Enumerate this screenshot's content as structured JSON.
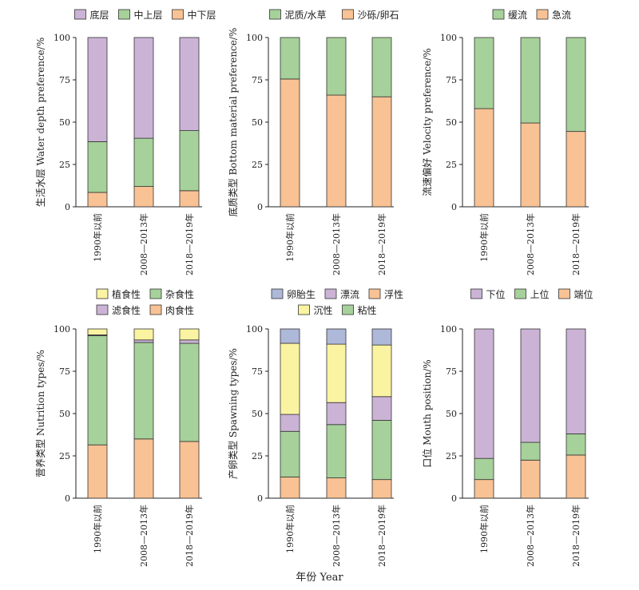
{
  "x_axis_title": "年份 Year",
  "colors": {
    "purple": "#CBB3D6",
    "green": "#A6D19A",
    "orange": "#F8C294",
    "yellow": "#FAF3A2",
    "blue": "#AEB8D8"
  },
  "chart_data": [
    {
      "type": "bar",
      "stacked": true,
      "categories": [
        "1990年以前",
        "2008—2013年",
        "2018—2019年"
      ],
      "ylabel": "生活水层 Water depth preference/%",
      "ylim": [
        0,
        100
      ],
      "yticks": [
        0,
        25,
        50,
        75,
        100
      ],
      "legend_rows": [
        [
          "底层",
          "中上层",
          "中下层"
        ]
      ],
      "series": [
        {
          "name": "中下层",
          "color": "orange",
          "values": [
            8.5,
            12,
            9.5
          ]
        },
        {
          "name": "中上层",
          "color": "green",
          "values": [
            30,
            28.5,
            35.5
          ]
        },
        {
          "name": "底层",
          "color": "purple",
          "values": [
            61.5,
            59.5,
            55
          ]
        }
      ]
    },
    {
      "type": "bar",
      "stacked": true,
      "categories": [
        "1990年以前",
        "2008—2013年",
        "2018—2019年"
      ],
      "ylabel": "底质类型 Bottom material preference/%",
      "ylim": [
        0,
        100
      ],
      "yticks": [
        0,
        25,
        50,
        75,
        100
      ],
      "legend_rows": [
        [
          "泥质/水草",
          "沙砾/卵石"
        ]
      ],
      "series": [
        {
          "name": "沙砾/卵石",
          "color": "orange",
          "values": [
            75.5,
            66,
            65
          ]
        },
        {
          "name": "泥质/水草",
          "color": "green",
          "values": [
            24.5,
            34,
            35
          ]
        }
      ]
    },
    {
      "type": "bar",
      "stacked": true,
      "categories": [
        "1990年以前",
        "2008—2013年",
        "2018—2019年"
      ],
      "ylabel": "流速偏好 Velocity preference/%",
      "ylim": [
        0,
        100
      ],
      "yticks": [
        0,
        25,
        50,
        75,
        100
      ],
      "legend_rows": [
        [
          "缓流",
          "急流"
        ]
      ],
      "series": [
        {
          "name": "急流",
          "color": "orange",
          "values": [
            58,
            49.5,
            44.5
          ]
        },
        {
          "name": "缓流",
          "color": "green",
          "values": [
            42,
            50.5,
            55.5
          ]
        }
      ]
    },
    {
      "type": "bar",
      "stacked": true,
      "categories": [
        "1990年以前",
        "2008—2013年",
        "2018—2019年"
      ],
      "ylabel": "营养类型 Nutrition types/%",
      "ylim": [
        0,
        100
      ],
      "yticks": [
        0,
        25,
        50,
        75,
        100
      ],
      "legend_rows": [
        [
          "植食性",
          "杂食性"
        ],
        [
          "滤食性",
          "肉食性"
        ]
      ],
      "series": [
        {
          "name": "肉食性",
          "color": "orange",
          "values": [
            31.5,
            35,
            33.5
          ]
        },
        {
          "name": "杂食性",
          "color": "green",
          "values": [
            64.5,
            57,
            58
          ]
        },
        {
          "name": "滤食性",
          "color": "purple",
          "values": [
            0.5,
            1.5,
            2
          ]
        },
        {
          "name": "植食性",
          "color": "yellow",
          "values": [
            3.5,
            6.5,
            6.5
          ]
        }
      ]
    },
    {
      "type": "bar",
      "stacked": true,
      "categories": [
        "1990年以前",
        "2008—2013年",
        "2018—2019年"
      ],
      "ylabel": "产卵类型 Spawning types/%",
      "ylim": [
        0,
        100
      ],
      "yticks": [
        0,
        25,
        50,
        75,
        100
      ],
      "legend_rows": [
        [
          "卵胎生",
          "漂流",
          "浮性"
        ],
        [
          "沉性",
          "粘性"
        ]
      ],
      "series": [
        {
          "name": "浮性",
          "color": "orange",
          "values": [
            12.5,
            12,
            11
          ]
        },
        {
          "name": "粘性",
          "color": "green",
          "values": [
            27,
            31.5,
            35
          ]
        },
        {
          "name": "漂流",
          "color": "purple",
          "values": [
            10,
            13,
            14
          ]
        },
        {
          "name": "沉性",
          "color": "yellow",
          "values": [
            42,
            34.5,
            30.5
          ]
        },
        {
          "name": "卵胎生",
          "color": "blue",
          "values": [
            8.5,
            9,
            9.5
          ]
        }
      ]
    },
    {
      "type": "bar",
      "stacked": true,
      "categories": [
        "1990年以前",
        "2008—2013年",
        "2018—2019年"
      ],
      "ylabel": "口位 Mouth position/%",
      "ylim": [
        0,
        100
      ],
      "yticks": [
        0,
        25,
        50,
        75,
        100
      ],
      "legend_rows": [
        [
          "下位",
          "上位",
          "端位"
        ]
      ],
      "series": [
        {
          "name": "端位",
          "color": "orange",
          "values": [
            11,
            22.5,
            25.5
          ]
        },
        {
          "name": "上位",
          "color": "green",
          "values": [
            12.5,
            10.5,
            12.5
          ]
        },
        {
          "name": "下位",
          "color": "purple",
          "values": [
            76.5,
            67,
            62
          ]
        }
      ]
    }
  ]
}
